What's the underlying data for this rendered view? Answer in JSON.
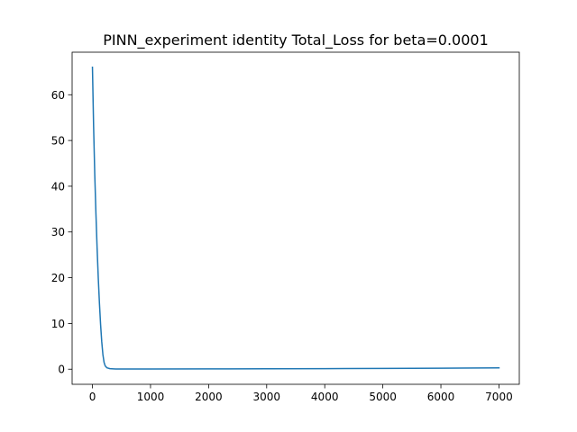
{
  "chart_data": {
    "type": "line",
    "title": "PINN_experiment identity Total_Loss for beta=0.0001",
    "xlabel": "",
    "ylabel": "",
    "xlim": [
      -350,
      7350
    ],
    "ylim": [
      -3.3,
      69.3
    ],
    "grid": false,
    "legend": "none",
    "x_ticks": [
      0,
      1000,
      2000,
      3000,
      4000,
      5000,
      6000,
      7000
    ],
    "x_tick_labels": [
      "0",
      "1000",
      "2000",
      "3000",
      "4000",
      "5000",
      "6000",
      "7000"
    ],
    "y_ticks": [
      0,
      10,
      20,
      30,
      40,
      50,
      60
    ],
    "y_tick_labels": [
      "0",
      "10",
      "20",
      "30",
      "40",
      "50",
      "60"
    ],
    "series": [
      {
        "color": "#1f77b4",
        "x": [
          0,
          20,
          40,
          60,
          80,
          100,
          120,
          140,
          160,
          180,
          200,
          220,
          250,
          300,
          400,
          500,
          1000,
          2000,
          3000,
          4000,
          5000,
          6000,
          7000
        ],
        "y": [
          66.0,
          53.0,
          42.5,
          34.0,
          26.5,
          20.0,
          14.5,
          9.8,
          6.0,
          3.2,
          1.5,
          0.7,
          0.3,
          0.12,
          0.05,
          0.04,
          0.04,
          0.06,
          0.09,
          0.12,
          0.17,
          0.22,
          0.28
        ]
      }
    ]
  }
}
